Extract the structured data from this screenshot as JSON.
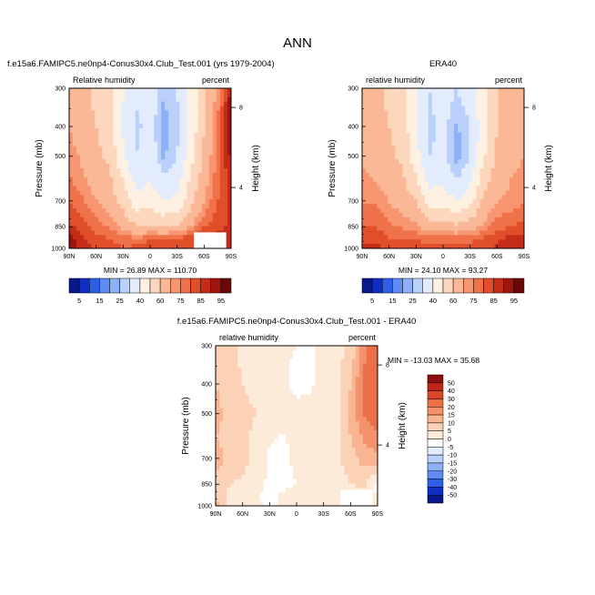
{
  "figure_title": "ANN",
  "colors": {
    "rh_levels": [
      "#08198a",
      "#0f2fc4",
      "#2e5fe6",
      "#5f8cf2",
      "#8db0f6",
      "#b9d1fa",
      "#e2ecfd",
      "#fff1e2",
      "#fdd7bd",
      "#fbb896",
      "#f79670",
      "#f0724a",
      "#e14e2a",
      "#c52c18",
      "#9c150f",
      "#6b0707"
    ],
    "diff_levels": [
      "#08198a",
      "#0f2fc4",
      "#2e5fe6",
      "#5f8cf2",
      "#8db0f6",
      "#b9d1fa",
      "#e2ecfd",
      "#ffffff",
      "#fdebd9",
      "#fbd2b6",
      "#f9b592",
      "#f4926b",
      "#ec6f48",
      "#da4827",
      "#bd2516",
      "#8f0f0c"
    ]
  },
  "chart_data": [
    {
      "type": "heatmap",
      "panel_title": "f.e15a6.FAMIPC5.ne0np4-Conus30x4.Club_Test.001 (yrs 1979-2004)",
      "left_label": "Relative humidity",
      "right_label": "percent",
      "ylabel": "Pressure (mb)",
      "right_axis_label": "Height (km)",
      "x_ticks": [
        "90N",
        "60N",
        "30N",
        "0",
        "30S",
        "60S",
        "90S"
      ],
      "y_ticks": [
        "300",
        "400",
        "500",
        "700",
        "850",
        "1000"
      ],
      "right_ticks": [
        "8",
        "4"
      ],
      "min_max": "MIN = 26.89   MAX = 110.70",
      "colorbar_labels": [
        "5",
        "15",
        "25",
        "40",
        "60",
        "75",
        "85",
        "95"
      ],
      "fields": {
        "cols": [
          "90N",
          "75N",
          "60N",
          "45N",
          "30N",
          "15N",
          "0",
          "15S",
          "30S",
          "45S",
          "60S",
          "75S",
          "90S"
        ],
        "rows": [
          "300",
          "400",
          "500",
          "600",
          "700",
          "850",
          "925",
          "1000"
        ],
        "values": [
          [
            68,
            62,
            58,
            52,
            40,
            32,
            36,
            26,
            30,
            44,
            58,
            72,
            92
          ],
          [
            70,
            64,
            60,
            55,
            38,
            28,
            34,
            22,
            28,
            42,
            60,
            76,
            95
          ],
          [
            74,
            68,
            62,
            58,
            42,
            30,
            36,
            24,
            30,
            46,
            62,
            78,
            92
          ],
          [
            76,
            72,
            66,
            62,
            50,
            36,
            40,
            32,
            36,
            52,
            66,
            78,
            88
          ],
          [
            80,
            76,
            70,
            66,
            56,
            44,
            46,
            40,
            42,
            56,
            70,
            80,
            86
          ],
          [
            86,
            82,
            78,
            74,
            68,
            60,
            62,
            58,
            62,
            70,
            80,
            84,
            86
          ],
          [
            92,
            86,
            82,
            80,
            78,
            74,
            80,
            78,
            80,
            82,
            86,
            86,
            86
          ],
          [
            96,
            88,
            84,
            82,
            80,
            82,
            86,
            84,
            84,
            84,
            86,
            86,
            86
          ]
        ]
      },
      "missing_box": "lower-right"
    },
    {
      "type": "heatmap",
      "panel_title": "ERA40",
      "left_label": "relative humidity",
      "right_label": "percent",
      "ylabel": "Pressure (mb)",
      "right_axis_label": "Height (km)",
      "x_ticks": [
        "90N",
        "60N",
        "30N",
        "0",
        "30S",
        "60S",
        "90S"
      ],
      "y_ticks": [
        "300",
        "400",
        "500",
        "700",
        "850",
        "1000"
      ],
      "right_ticks": [
        "8",
        "4"
      ],
      "min_max": "MIN = 24.10   MAX = 93.27",
      "colorbar_labels": [
        "5",
        "15",
        "25",
        "40",
        "60",
        "75",
        "85",
        "95"
      ],
      "fields": {
        "cols": [
          "90N",
          "75N",
          "60N",
          "45N",
          "30N",
          "15N",
          "0",
          "15S",
          "30S",
          "45S",
          "60S",
          "75S",
          "90S"
        ],
        "rows": [
          "300",
          "400",
          "500",
          "600",
          "700",
          "850",
          "925",
          "1000"
        ],
        "values": [
          [
            66,
            62,
            58,
            52,
            42,
            30,
            36,
            30,
            34,
            48,
            60,
            62,
            68
          ],
          [
            66,
            64,
            60,
            56,
            40,
            28,
            32,
            24,
            30,
            46,
            60,
            66,
            70
          ],
          [
            68,
            66,
            62,
            58,
            44,
            30,
            32,
            22,
            30,
            48,
            62,
            68,
            70
          ],
          [
            72,
            70,
            66,
            62,
            52,
            36,
            38,
            30,
            38,
            56,
            66,
            70,
            72
          ],
          [
            74,
            74,
            70,
            66,
            60,
            46,
            46,
            40,
            46,
            62,
            70,
            72,
            74
          ],
          [
            80,
            80,
            76,
            74,
            72,
            64,
            66,
            62,
            66,
            72,
            78,
            80,
            82
          ],
          [
            84,
            84,
            80,
            80,
            80,
            76,
            78,
            76,
            78,
            80,
            84,
            86,
            86
          ],
          [
            86,
            86,
            84,
            84,
            82,
            82,
            84,
            82,
            82,
            84,
            86,
            88,
            88
          ]
        ]
      }
    },
    {
      "type": "heatmap",
      "panel_title": "f.e15a6.FAMIPC5.ne0np4-Conus30x4.Club_Test.001 - ERA40",
      "left_label": "relative humidity",
      "right_label": "percent",
      "ylabel": "Pressure (mb)",
      "right_axis_label": "Height (km)",
      "x_ticks": [
        "90N",
        "60N",
        "30N",
        "0",
        "30S",
        "60S",
        "90S"
      ],
      "y_ticks": [
        "300",
        "400",
        "500",
        "700",
        "850",
        "1000"
      ],
      "right_ticks": [
        "8",
        "4"
      ],
      "min_max": "MIN = -13.03   MAX = 35.68",
      "colorbar_labels": [
        "50",
        "40",
        "30",
        "20",
        "15",
        "10",
        "5",
        "0",
        "-5",
        "-10",
        "-15",
        "-20",
        "-30",
        "-40",
        "-50"
      ],
      "fields": {
        "cols": [
          "90N",
          "75N",
          "60N",
          "45N",
          "30N",
          "15N",
          "0",
          "15S",
          "30S",
          "45S",
          "60S",
          "75S",
          "90S"
        ],
        "rows": [
          "300",
          "400",
          "500",
          "600",
          "700",
          "850",
          "925",
          "1000"
        ],
        "values": [
          [
            8,
            6,
            4,
            3,
            2,
            1,
            0,
            -2,
            2,
            3,
            6,
            18,
            24
          ],
          [
            10,
            7,
            5,
            4,
            2,
            2,
            -3,
            -1,
            2,
            4,
            10,
            22,
            26
          ],
          [
            12,
            8,
            6,
            5,
            3,
            4,
            4,
            3,
            2,
            3,
            12,
            20,
            24
          ],
          [
            10,
            8,
            6,
            4,
            1,
            -1,
            3,
            2,
            2,
            4,
            10,
            16,
            18
          ],
          [
            12,
            9,
            7,
            3,
            -1,
            -2,
            2,
            2,
            1,
            4,
            8,
            12,
            14
          ],
          [
            8,
            5,
            4,
            2,
            -1,
            -2,
            0,
            1,
            0,
            2,
            5,
            6,
            -3
          ],
          [
            10,
            4,
            2,
            1,
            -2,
            1,
            2,
            3,
            3,
            3,
            4,
            2,
            0
          ],
          [
            12,
            4,
            2,
            1,
            -1,
            1,
            2,
            3,
            3,
            3,
            2,
            0,
            0
          ]
        ]
      },
      "missing_box": "lower-right"
    }
  ]
}
